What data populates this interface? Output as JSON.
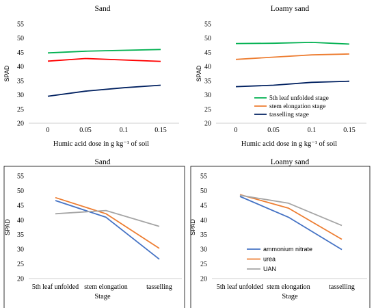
{
  "chart_data": [
    {
      "type": "line",
      "title": "Sand",
      "xlabel": "Humic acid dose in g kg⁻¹ of soil",
      "ylabel": "SPAD",
      "categories": [
        "0",
        "0.05",
        "0.1",
        "0.15"
      ],
      "ylim": [
        20,
        55
      ],
      "yticks": [
        "20",
        "25",
        "30",
        "35",
        "40",
        "45",
        "50",
        "55"
      ],
      "grid": false,
      "legend": null,
      "series": [
        {
          "name": "5th leaf unfolded stage",
          "color": "#00b050",
          "values": [
            44.8,
            45.4,
            45.7,
            46.0
          ]
        },
        {
          "name": "stem elongation stage",
          "color": "#ff0000",
          "values": [
            41.9,
            42.8,
            42.3,
            41.8
          ]
        },
        {
          "name": "tasselling stage",
          "color": "#002060",
          "values": [
            29.5,
            31.3,
            32.5,
            33.4
          ]
        }
      ]
    },
    {
      "type": "line",
      "title": "Loamy sand",
      "xlabel": "Humic acid dose in g kg⁻¹ of soil",
      "ylabel": "SPAD",
      "categories": [
        "0",
        "0.05",
        "0.1",
        "0.15"
      ],
      "ylim": [
        20,
        55
      ],
      "yticks": [
        "20",
        "25",
        "30",
        "35",
        "40",
        "45",
        "50",
        "55"
      ],
      "grid": false,
      "legend": "bottom-right",
      "series": [
        {
          "name": "5th leaf unfolded stage",
          "color": "#00b050",
          "values": [
            48.1,
            48.2,
            48.5,
            47.9
          ]
        },
        {
          "name": "stem elongation stage",
          "color": "#ed7d31",
          "values": [
            42.5,
            43.3,
            44.1,
            44.4
          ]
        },
        {
          "name": "tasselling stage",
          "color": "#002060",
          "values": [
            32.9,
            33.4,
            34.4,
            34.8
          ]
        }
      ]
    },
    {
      "type": "line",
      "title": "Sand",
      "xlabel": "Stage",
      "ylabel": "SPAD",
      "categories": [
        "5th leaf unfolded",
        "stem elongation",
        "tasselling"
      ],
      "ylim": [
        20,
        55
      ],
      "yticks": [
        "20",
        "25",
        "30",
        "35",
        "40",
        "45",
        "50",
        "55"
      ],
      "grid": false,
      "legend": null,
      "series": [
        {
          "name": "ammonium nitrate",
          "color": "#4472c4",
          "values": [
            46.6,
            40.9,
            26.6
          ]
        },
        {
          "name": "urea",
          "color": "#ed7d31",
          "values": [
            47.6,
            42.1,
            30.3
          ]
        },
        {
          "name": "UAN",
          "color": "#a5a5a5",
          "values": [
            42.1,
            43.2,
            37.8
          ]
        }
      ]
    },
    {
      "type": "line",
      "title": "Loamy sand",
      "xlabel": "Stage",
      "ylabel": "SPAD",
      "categories": [
        "5th leaf unfolded",
        "stem elongation",
        "tasselling"
      ],
      "ylim": [
        20,
        55
      ],
      "yticks": [
        "20",
        "25",
        "30",
        "35",
        "40",
        "45",
        "50",
        "55"
      ],
      "grid": false,
      "legend": "bottom-right",
      "series": [
        {
          "name": "ammonium nitrate",
          "color": "#4472c4",
          "values": [
            48.0,
            40.9,
            29.9
          ]
        },
        {
          "name": "urea",
          "color": "#ed7d31",
          "values": [
            48.6,
            44.0,
            33.4
          ]
        },
        {
          "name": "UAN",
          "color": "#a5a5a5",
          "values": [
            48.4,
            45.7,
            38.1
          ]
        }
      ]
    }
  ]
}
